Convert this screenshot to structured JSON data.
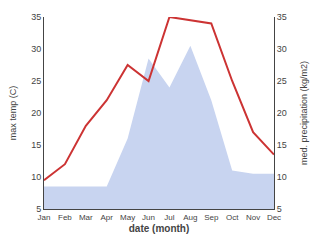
{
  "chart_data": {
    "type": "line",
    "categories": [
      "Jan",
      "Feb",
      "Mar",
      "Apr",
      "May",
      "Jun",
      "Jul",
      "Aug",
      "Sep",
      "Oct",
      "Nov",
      "Dec"
    ],
    "series": [
      {
        "type": "area",
        "axis": "y2",
        "color": "#c8d4f0",
        "values": [
          8.5,
          8.5,
          8.5,
          8.5,
          16.0,
          28.5,
          24.0,
          30.5,
          22.0,
          11.0,
          10.5,
          10.5
        ]
      },
      {
        "type": "line",
        "color": "#cc3333",
        "values": [
          9.5,
          12.0,
          18.0,
          22.0,
          27.5,
          25.0,
          35.0,
          34.5,
          34.0,
          25.0,
          17.0,
          13.5
        ]
      }
    ],
    "xlabel": "date (month)",
    "ylabel": "max temp (C)",
    "y2label": "med. precipitation (kg/m2)",
    "ylim": [
      5,
      35
    ],
    "yticks": [
      5,
      10,
      15,
      20,
      25,
      30,
      35
    ],
    "y2lim": [
      5,
      35
    ],
    "y2ticks": [
      5,
      10,
      15,
      20,
      25,
      30,
      35
    ],
    "grid": false
  }
}
